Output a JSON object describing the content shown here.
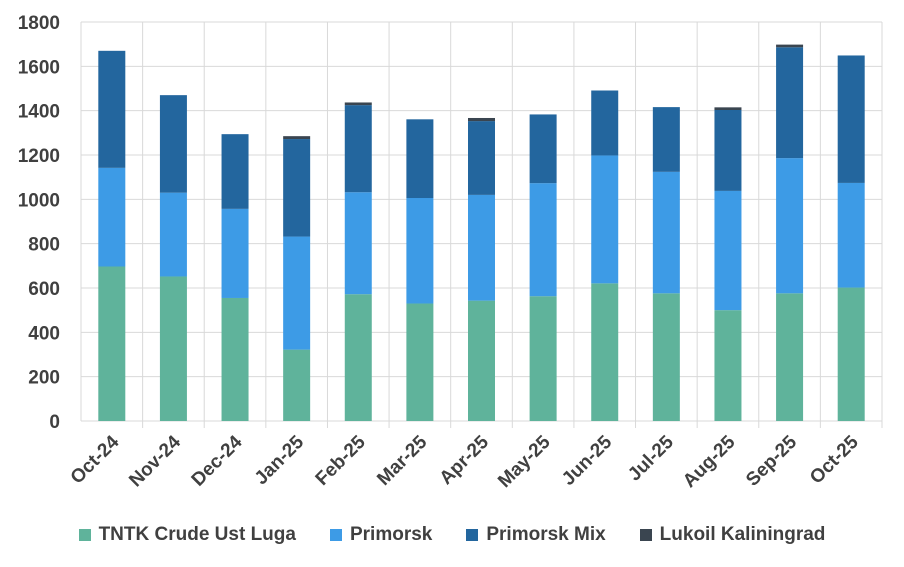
{
  "chart_data": {
    "type": "bar",
    "stacked": true,
    "categories": [
      "Oct-24",
      "Nov-24",
      "Dec-24",
      "Jan-25",
      "Feb-25",
      "Mar-25",
      "Apr-25",
      "May-25",
      "Jun-25",
      "Jul-25",
      "Aug-25",
      "Sep-25",
      "Oct-25"
    ],
    "series": [
      {
        "name": "TNTK Crude Ust Luga",
        "color": "#5fb39b",
        "values": [
          697,
          652,
          555,
          322,
          572,
          530,
          543,
          563,
          621,
          576,
          500,
          576,
          602
        ]
      },
      {
        "name": "Primorsk",
        "color": "#3d9be6",
        "values": [
          445,
          378,
          402,
          510,
          460,
          476,
          477,
          510,
          577,
          548,
          538,
          610,
          472
        ]
      },
      {
        "name": "Primorsk Mix",
        "color": "#23669e",
        "values": [
          528,
          440,
          337,
          440,
          393,
          355,
          333,
          310,
          293,
          292,
          365,
          500,
          575
        ]
      },
      {
        "name": "Lukoil Kaliningrad",
        "color": "#3a4550",
        "values": [
          0,
          0,
          0,
          13,
          12,
          0,
          14,
          0,
          0,
          0,
          12,
          12,
          0
        ]
      }
    ],
    "yticks": [
      0,
      200,
      400,
      600,
      800,
      1000,
      1200,
      1400,
      1600,
      1800
    ],
    "ylim": [
      0,
      1800
    ],
    "grid": true,
    "legend_position": "bottom"
  }
}
